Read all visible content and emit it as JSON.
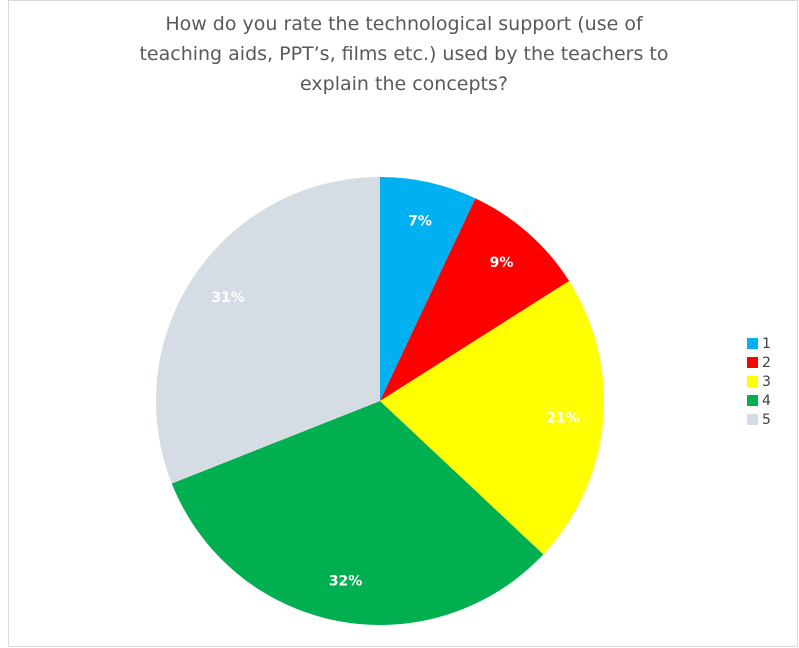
{
  "chart_data": {
    "type": "pie",
    "title_lines": [
      "How do you rate the technological support (use of",
      "teaching aids, PPT’s, films etc.) used by the teachers to",
      "explain the concepts?"
    ],
    "categories": [
      "1",
      "2",
      "3",
      "4",
      "5"
    ],
    "values": [
      7,
      9,
      21,
      32,
      31
    ],
    "data_labels": [
      "7%",
      "9%",
      "21%",
      "32%",
      "31%"
    ],
    "colors": [
      "#00b0f0",
      "#ff0000",
      "#ffff00",
      "#00b050",
      "#d6dce4"
    ],
    "label_colors": [
      "#ffffff",
      "#ffffff",
      "#ffffff",
      "#ffffff",
      "#ffffff"
    ],
    "legend_position": "right"
  }
}
